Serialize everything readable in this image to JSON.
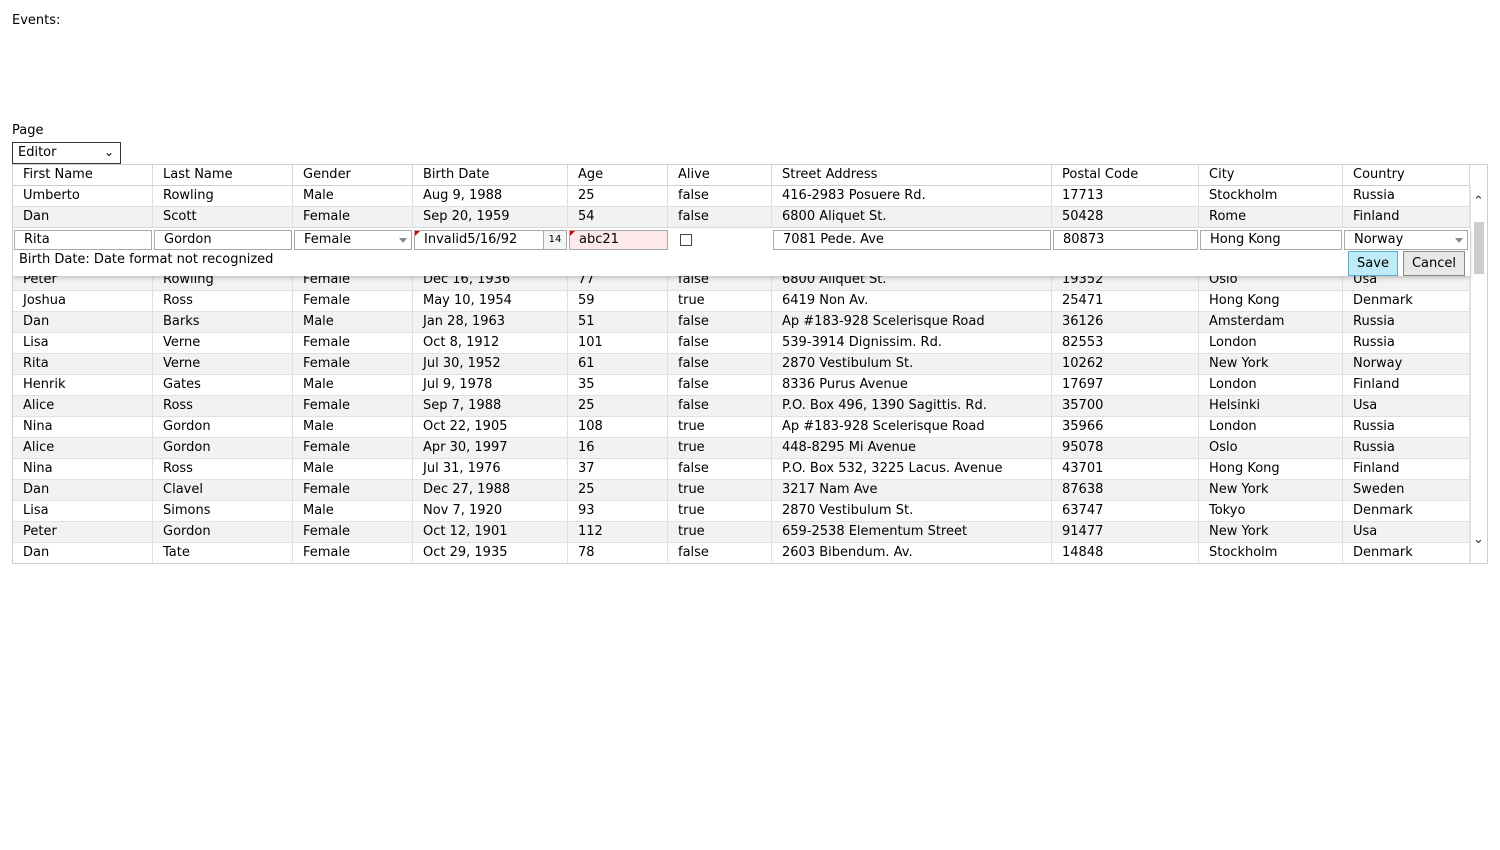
{
  "events": {
    "label": "Events:"
  },
  "page": {
    "label": "Page",
    "selected": "Editor"
  },
  "columns": [
    "First Name",
    "Last Name",
    "Gender",
    "Birth Date",
    "Age",
    "Alive",
    "Street Address",
    "Postal Code",
    "City",
    "Country"
  ],
  "rows_before": [
    [
      "Umberto",
      "Rowling",
      "Male",
      "Aug 9, 1988",
      "25",
      "false",
      "416-2983 Posuere Rd.",
      "17713",
      "Stockholm",
      "Russia"
    ],
    [
      "Dan",
      "Scott",
      "Female",
      "Sep 20, 1959",
      "54",
      "false",
      "6800 Aliquet St.",
      "50428",
      "Rome",
      "Finland"
    ]
  ],
  "editor": {
    "first_name": "Rita",
    "last_name": "Gordon",
    "gender": "Female",
    "birth_date": "Invalid5/16/92",
    "age": "abc21",
    "alive": false,
    "street": "7081 Pede. Ave",
    "postal": "80873",
    "city": "Hong Kong",
    "country": "Norway",
    "error": "Birth Date: Date format not recognized",
    "save_label": "Save",
    "cancel_label": "Cancel",
    "calendar_icon_text": "14"
  },
  "rows_after": [
    [
      "Peter",
      "Rowling",
      "Female",
      "Dec 16, 1936",
      "77",
      "false",
      "6800 Aliquet St.",
      "19352",
      "Oslo",
      "Usa"
    ],
    [
      "Joshua",
      "Ross",
      "Female",
      "May 10, 1954",
      "59",
      "true",
      "6419 Non Av.",
      "25471",
      "Hong Kong",
      "Denmark"
    ],
    [
      "Dan",
      "Barks",
      "Male",
      "Jan 28, 1963",
      "51",
      "false",
      "Ap #183-928 Scelerisque Road",
      "36126",
      "Amsterdam",
      "Russia"
    ],
    [
      "Lisa",
      "Verne",
      "Female",
      "Oct 8, 1912",
      "101",
      "false",
      "539-3914 Dignissim. Rd.",
      "82553",
      "London",
      "Russia"
    ],
    [
      "Rita",
      "Verne",
      "Female",
      "Jul 30, 1952",
      "61",
      "false",
      "2870 Vestibulum St.",
      "10262",
      "New York",
      "Norway"
    ],
    [
      "Henrik",
      "Gates",
      "Male",
      "Jul 9, 1978",
      "35",
      "false",
      "8336 Purus Avenue",
      "17697",
      "London",
      "Finland"
    ],
    [
      "Alice",
      "Ross",
      "Female",
      "Sep 7, 1988",
      "25",
      "false",
      "P.O. Box 496, 1390 Sagittis. Rd.",
      "35700",
      "Helsinki",
      "Usa"
    ],
    [
      "Nina",
      "Gordon",
      "Male",
      "Oct 22, 1905",
      "108",
      "true",
      "Ap #183-928 Scelerisque Road",
      "35966",
      "London",
      "Russia"
    ],
    [
      "Alice",
      "Gordon",
      "Female",
      "Apr 30, 1997",
      "16",
      "true",
      "448-8295 Mi Avenue",
      "95078",
      "Oslo",
      "Russia"
    ],
    [
      "Nina",
      "Ross",
      "Male",
      "Jul 31, 1976",
      "37",
      "false",
      "P.O. Box 532, 3225 Lacus. Avenue",
      "43701",
      "Hong Kong",
      "Finland"
    ],
    [
      "Dan",
      "Clavel",
      "Female",
      "Dec 27, 1988",
      "25",
      "true",
      "3217 Nam Ave",
      "87638",
      "New York",
      "Sweden"
    ],
    [
      "Lisa",
      "Simons",
      "Male",
      "Nov 7, 1920",
      "93",
      "true",
      "2870 Vestibulum St.",
      "63747",
      "Tokyo",
      "Denmark"
    ],
    [
      "Peter",
      "Gordon",
      "Female",
      "Oct 12, 1901",
      "112",
      "true",
      "659-2538 Elementum Street",
      "91477",
      "New York",
      "Usa"
    ],
    [
      "Dan",
      "Tate",
      "Female",
      "Oct 29, 1935",
      "78",
      "false",
      "2603 Bibendum. Av.",
      "14848",
      "Stockholm",
      "Denmark"
    ]
  ]
}
